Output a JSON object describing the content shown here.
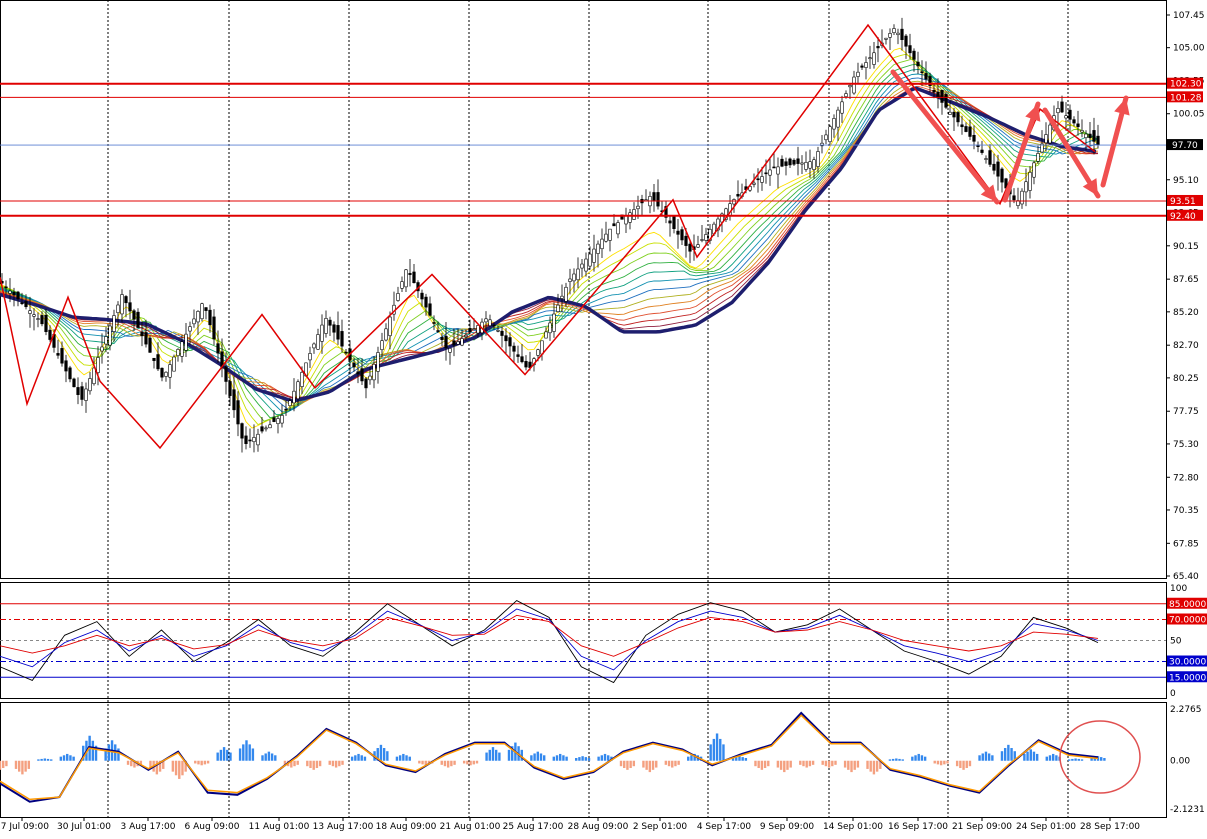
{
  "chart_data": [
    {
      "type": "candlestick",
      "panel": "price",
      "ylim": [
        65.4,
        108.5
      ],
      "y_ticks": [
        "107.45",
        "105.00",
        "102.55",
        "100.05",
        "97.70",
        "95.10",
        "92.65",
        "90.15",
        "87.65",
        "85.20",
        "82.70",
        "80.25",
        "77.75",
        "75.30",
        "72.80",
        "70.35",
        "67.85",
        "65.40"
      ],
      "x_ticks": [
        "27 Jul 09:00",
        "30 Jul 01:00",
        "3 Aug 17:00",
        "6 Aug 09:00",
        "11 Aug 01:00",
        "13 Aug 17:00",
        "18 Aug 09:00",
        "21 Aug 01:00",
        "25 Aug 17:00",
        "28 Aug 09:00",
        "2 Sep 01:00",
        "4 Sep 17:00",
        "9 Sep 09:00",
        "14 Sep 01:00",
        "16 Sep 17:00",
        "21 Sep 09:00",
        "24 Sep 01:00",
        "28 Sep 17:00"
      ],
      "current_price": {
        "value": 97.7,
        "label": "97.70",
        "color": "#000000"
      },
      "levels": [
        {
          "value": 102.3,
          "label": "102.30",
          "color": "#e00000",
          "width": 2
        },
        {
          "value": 101.28,
          "label": "101.28",
          "color": "#e00000",
          "width": 1
        },
        {
          "value": 93.51,
          "label": "93.51",
          "color": "#e00000",
          "width": 1
        },
        {
          "value": 92.4,
          "label": "92.40",
          "color": "#e00000",
          "width": 2
        }
      ],
      "price_path": [
        87.5,
        84.5,
        78.5,
        86.5,
        80.2,
        86.0,
        75.2,
        77.6,
        84.8,
        79.5,
        88.5,
        82.3,
        84.8,
        80.8,
        87.6,
        91.4,
        93.9,
        89.6,
        93.5,
        96.0,
        96.5,
        102.8,
        106.5,
        101.5,
        97.8,
        93.3,
        100.5,
        97.7
      ],
      "zigzag": [
        [
          0,
          87.8
        ],
        [
          27,
          78.3
        ],
        [
          68,
          86.3
        ],
        [
          100,
          80.0
        ],
        [
          160,
          75.0
        ],
        [
          262,
          85.0
        ],
        [
          315,
          79.5
        ],
        [
          432,
          88.0
        ],
        [
          525,
          80.5
        ],
        [
          673,
          93.6
        ],
        [
          697,
          89.3
        ],
        [
          868,
          106.7
        ],
        [
          1000,
          93.3
        ],
        [
          1040,
          100.4
        ],
        [
          1095,
          97.2
        ]
      ],
      "ma_long": [
        86.5,
        85.7,
        84.8,
        84.6,
        84.3,
        83.0,
        81.3,
        79.4,
        78.5,
        79.2,
        80.9,
        81.6,
        82.3,
        83.3,
        85.2,
        86.3,
        85.6,
        83.7,
        83.7,
        84.2,
        85.9,
        88.9,
        92.8,
        96.0,
        100.3,
        102.0,
        100.9,
        99.8,
        98.5,
        97.6,
        97.2
      ],
      "arrows_color": "#f05050"
    },
    {
      "type": "line",
      "panel": "stochastic",
      "ylim": [
        0,
        100
      ],
      "y_ticks": [
        "100",
        "50",
        "0"
      ],
      "levels": [
        {
          "value": 85,
          "label": "85.0000",
          "color": "#e00000"
        },
        {
          "value": 70,
          "label": "70.0000",
          "color": "#e00000"
        },
        {
          "value": 30,
          "label": "30.0000",
          "color": "#0000cc"
        },
        {
          "value": 15,
          "label": "15.0000",
          "color": "#0000cc"
        }
      ],
      "series": [
        {
          "color": "#000000",
          "values": [
            25,
            12,
            55,
            68,
            35,
            60,
            30,
            48,
            70,
            45,
            35,
            58,
            85,
            65,
            45,
            60,
            88,
            72,
            25,
            10,
            55,
            75,
            86,
            78,
            58,
            65,
            80,
            60,
            40,
            30,
            18,
            35,
            72,
            62,
            48
          ]
        },
        {
          "color": "#0000cc",
          "values": [
            35,
            25,
            48,
            60,
            40,
            55,
            35,
            45,
            65,
            48,
            40,
            55,
            78,
            65,
            50,
            58,
            80,
            70,
            35,
            22,
            50,
            68,
            78,
            72,
            58,
            62,
            74,
            60,
            45,
            38,
            30,
            40,
            66,
            60,
            50
          ]
        },
        {
          "color": "#e00000",
          "values": [
            45,
            38,
            45,
            55,
            45,
            52,
            42,
            46,
            60,
            50,
            45,
            52,
            72,
            64,
            55,
            56,
            74,
            68,
            45,
            35,
            48,
            62,
            72,
            68,
            58,
            60,
            68,
            60,
            50,
            45,
            40,
            45,
            58,
            56,
            52
          ]
        }
      ]
    },
    {
      "type": "histogram",
      "panel": "oscillator",
      "ylim": [
        -2.1231,
        2.2765
      ],
      "y_ticks": [
        "2.2765",
        "0.00",
        "-2.1231"
      ],
      "hist_pos_color": "#3388ee",
      "hist_neg_color": "#f4a080",
      "series": [
        {
          "color": "#000080",
          "values": [
            -1.0,
            -1.8,
            -1.6,
            0.6,
            0.4,
            -0.4,
            0.4,
            -1.4,
            -1.5,
            -0.8,
            0.2,
            1.4,
            0.8,
            -0.2,
            -0.5,
            0.3,
            0.8,
            0.8,
            -0.3,
            -0.8,
            -0.5,
            0.4,
            0.8,
            0.5,
            -0.2,
            0.3,
            0.7,
            2.1,
            0.8,
            0.8,
            -0.4,
            -0.7,
            -1.1,
            -1.4,
            -0.2,
            0.9,
            0.3,
            0.15
          ]
        },
        {
          "color": "#ff9900",
          "values": [
            -0.9,
            -1.7,
            -1.6,
            0.55,
            0.35,
            -0.35,
            0.35,
            -1.3,
            -1.4,
            -0.75,
            0.15,
            1.35,
            0.75,
            -0.15,
            -0.45,
            0.25,
            0.75,
            0.75,
            -0.25,
            -0.75,
            -0.45,
            0.35,
            0.75,
            0.45,
            -0.15,
            0.25,
            0.65,
            2.0,
            0.75,
            0.75,
            -0.35,
            -0.65,
            -1.05,
            -1.35,
            -0.15,
            0.85,
            0.25,
            0.1
          ]
        }
      ],
      "hist_values": [
        -0.4,
        -0.6,
        0.1,
        0.3,
        1.1,
        0.9,
        -0.3,
        -0.6,
        -0.8,
        -0.2,
        0.6,
        0.9,
        0.4,
        -0.3,
        -0.4,
        -0.3,
        0.3,
        0.7,
        0.3,
        -0.2,
        -0.3,
        -0.2,
        0.6,
        0.8,
        0.4,
        0.3,
        0.2,
        0.3,
        -0.4,
        -0.5,
        -0.3,
        0.3,
        1.2,
        0.2,
        -0.4,
        -0.5,
        -0.3,
        -0.3,
        -0.5,
        -0.6,
        0.1,
        0.3,
        -0.2,
        -0.4,
        0.4,
        0.7,
        0.5,
        0.3,
        0.1,
        0.2
      ]
    }
  ]
}
